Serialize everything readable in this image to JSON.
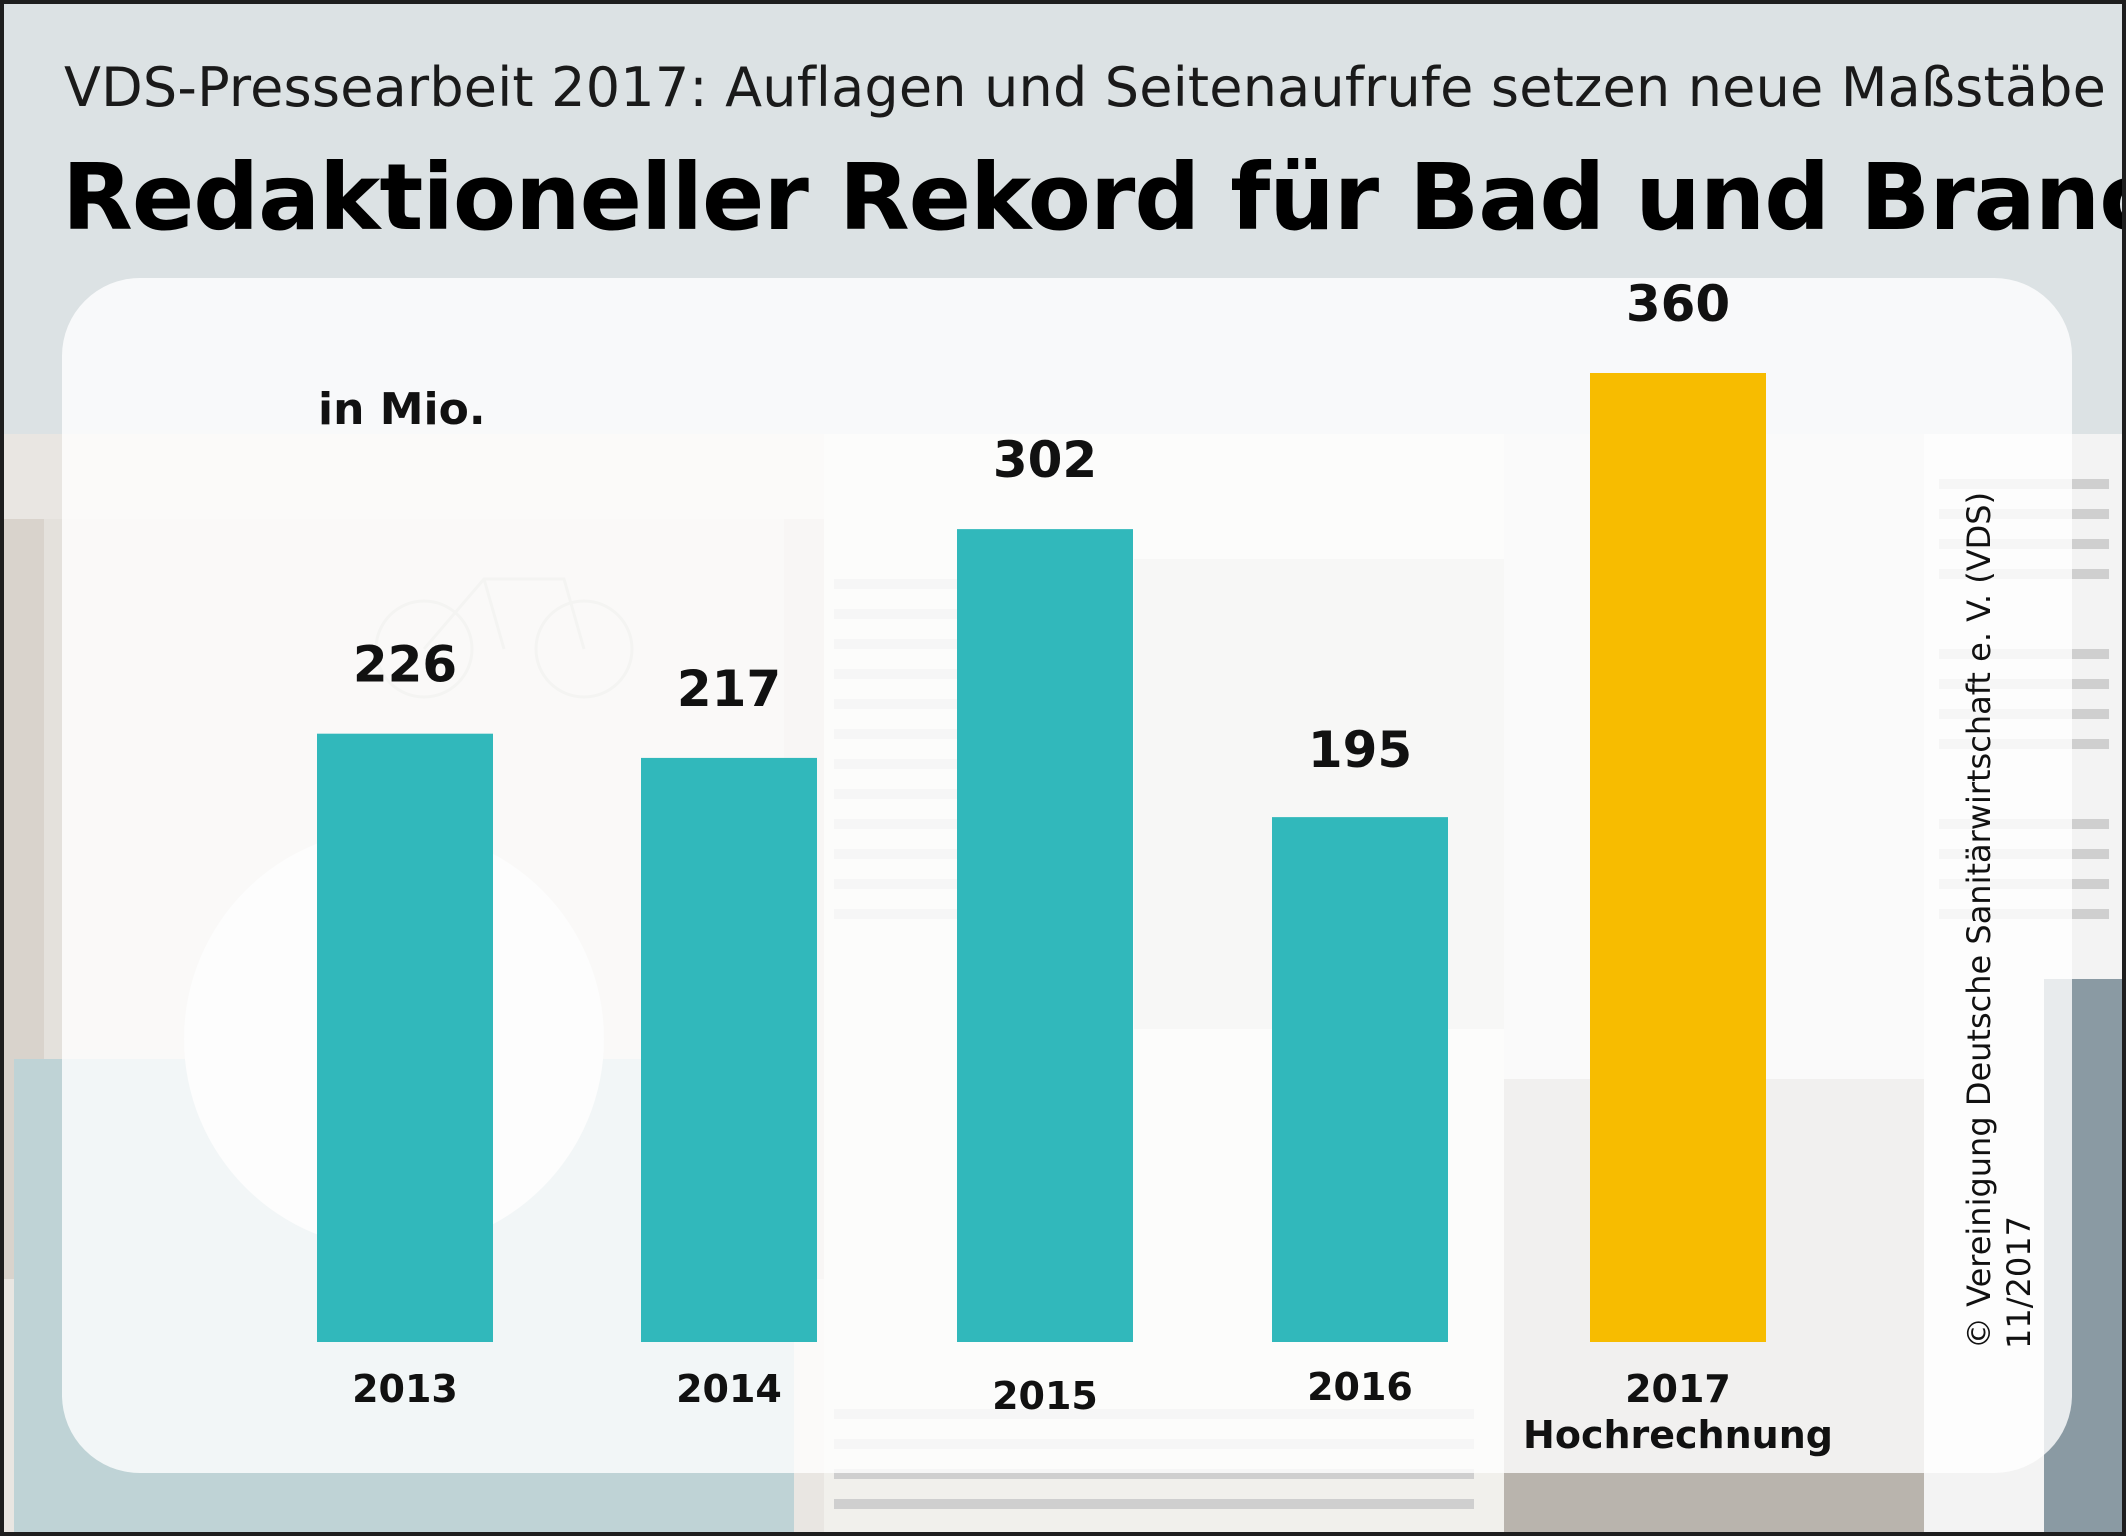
{
  "header": {
    "subtitle": "VDS-Pressearbeit 2017: Auflagen und Seitenaufrufe setzen neue Maßstäbe",
    "title": "Redaktioneller Rekord für Bad und Branche"
  },
  "chart_data": {
    "type": "bar",
    "unit_label": "in Mio.",
    "categories": [
      "2013",
      "2014",
      "2015",
      "2016",
      "2017"
    ],
    "category_notes": [
      "",
      "",
      "",
      "",
      "Hochrechnung"
    ],
    "values": [
      226,
      217,
      302,
      195,
      360
    ],
    "value_labels": [
      "226",
      "217",
      "302",
      "195",
      "360"
    ],
    "colors": [
      "#31b8bb",
      "#31b8bb",
      "#31b8bb",
      "#31b8bb",
      "#f7bc00"
    ],
    "ylim": [
      0,
      360
    ],
    "grid": false,
    "legend": "none"
  },
  "credit": {
    "line1": "© Vereinigung Deutsche Sanitärwirtschaft e. V. (VDS)",
    "line2": "11/2017"
  },
  "colors": {
    "bar_regular": "#31b8bb",
    "bar_highlight": "#f7bc00",
    "background": "#dce2e4"
  }
}
